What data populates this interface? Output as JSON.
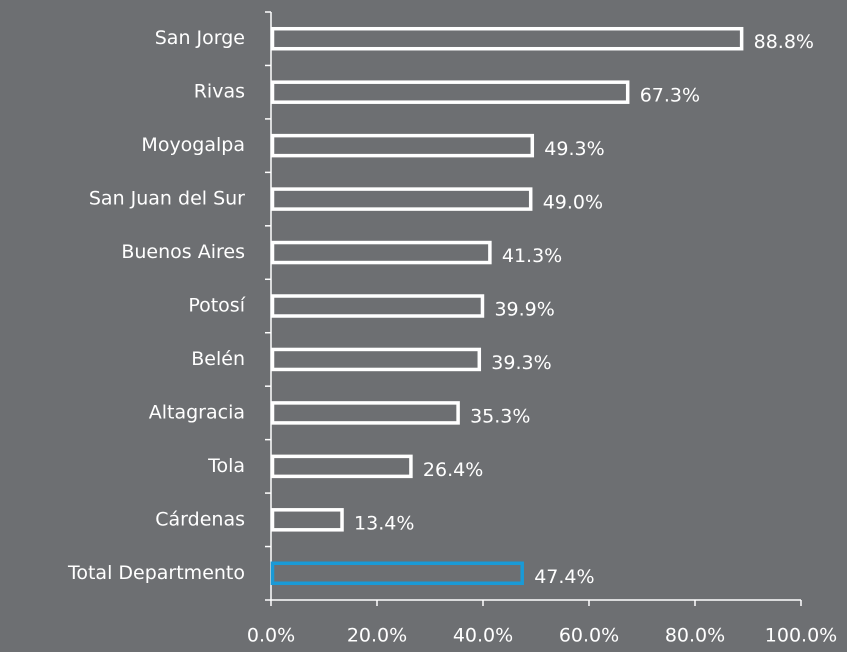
{
  "chart_data": {
    "type": "bar",
    "orientation": "horizontal",
    "categories": [
      "San Jorge",
      "Rivas",
      "Moyogalpa",
      "San Juan del Sur",
      "Buenos Aires",
      "Potosí",
      "Belén",
      "Altagracia",
      "Tola",
      "Cárdenas",
      "Total Departmento"
    ],
    "values": [
      88.8,
      67.3,
      49.3,
      49.0,
      41.3,
      39.9,
      39.3,
      35.3,
      26.4,
      13.4,
      47.4
    ],
    "value_labels": [
      "88.8%",
      "67.3%",
      "49.3%",
      "49.0%",
      "41.3%",
      "39.9%",
      "39.3%",
      "35.3%",
      "26.4%",
      "13.4%",
      "47.4%"
    ],
    "colors": [
      "#ffffff",
      "#ffffff",
      "#ffffff",
      "#ffffff",
      "#ffffff",
      "#ffffff",
      "#ffffff",
      "#ffffff",
      "#ffffff",
      "#ffffff",
      "#1a9ad6"
    ],
    "xlim": [
      0,
      100
    ],
    "xticks": [
      {
        "value": 0,
        "label": "0.0%"
      },
      {
        "value": 20,
        "label": "20.0%"
      },
      {
        "value": 40,
        "label": "40.0%"
      },
      {
        "value": 60,
        "label": "60.0%"
      },
      {
        "value": 80,
        "label": "80.0%"
      },
      {
        "value": 100,
        "label": "100.0%"
      }
    ],
    "grid": false
  }
}
